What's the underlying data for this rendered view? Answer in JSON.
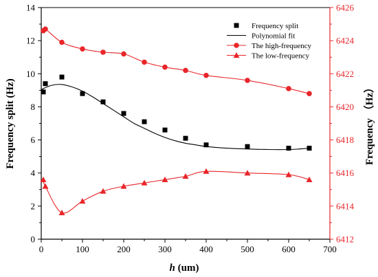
{
  "chart_data": {
    "type": "scatter",
    "xlabel_italic": "h",
    "xlabel_rest": " (um)",
    "ylabel": "Frequency split (Hz)",
    "y2label": "Frequency （Hz）",
    "xlim": [
      0,
      700
    ],
    "ylim": [
      0,
      14
    ],
    "y2lim": [
      6412,
      6426
    ],
    "x_ticks": [
      "0",
      "100",
      "200",
      "300",
      "400",
      "500",
      "600",
      "700"
    ],
    "y_ticks": [
      "0",
      "2",
      "4",
      "6",
      "8",
      "10",
      "12",
      "14"
    ],
    "y2_ticks": [
      "6412",
      "6414",
      "6416",
      "6418",
      "6420",
      "6422",
      "6424",
      "6426"
    ],
    "colors": {
      "left_axis": "#000000",
      "right_axis": "#e8262a",
      "fit": "#000000"
    },
    "series": [
      {
        "name": "Frequency split",
        "axis": "left",
        "marker": "square",
        "color": "#000000",
        "x": [
          5,
          10,
          50,
          100,
          150,
          200,
          250,
          300,
          350,
          400,
          500,
          600,
          650
        ],
        "y": [
          8.9,
          9.4,
          9.8,
          8.8,
          8.3,
          7.6,
          7.1,
          6.6,
          6.1,
          5.7,
          5.6,
          5.5,
          5.5
        ]
      },
      {
        "name": "Polynomial fit",
        "axis": "left",
        "marker": "line",
        "color": "#000000",
        "x": [
          0,
          25,
          50,
          75,
          100,
          125,
          150,
          175,
          200,
          225,
          250,
          275,
          300,
          325,
          350,
          375,
          400,
          450,
          500,
          550,
          600,
          625,
          650
        ],
        "y": [
          9.05,
          9.3,
          9.35,
          9.2,
          8.95,
          8.6,
          8.2,
          7.8,
          7.4,
          7.0,
          6.7,
          6.4,
          6.15,
          5.95,
          5.8,
          5.7,
          5.6,
          5.5,
          5.45,
          5.42,
          5.42,
          5.45,
          5.5
        ]
      },
      {
        "name": "The high-frequency",
        "axis": "right",
        "marker": "circle",
        "color": "#e8262a",
        "x": [
          5,
          10,
          50,
          100,
          150,
          200,
          250,
          300,
          350,
          400,
          500,
          600,
          650
        ],
        "y": [
          6424.6,
          6424.7,
          6423.9,
          6423.5,
          6423.3,
          6423.2,
          6422.7,
          6422.4,
          6422.2,
          6421.9,
          6421.6,
          6421.1,
          6420.8
        ]
      },
      {
        "name": "The low-frequency",
        "axis": "right",
        "marker": "triangle",
        "color": "#e8262a",
        "x": [
          5,
          10,
          50,
          100,
          150,
          200,
          250,
          300,
          350,
          400,
          500,
          600,
          650
        ],
        "y": [
          6415.6,
          6415.2,
          6413.6,
          6414.3,
          6414.9,
          6415.2,
          6415.4,
          6415.6,
          6415.8,
          6416.1,
          6416.0,
          6415.9,
          6415.6
        ]
      }
    ],
    "legend": {
      "placement": "top-right",
      "entries": [
        "Frequency split",
        "Polynomial fit",
        "The high-frequency",
        "The low-frequency"
      ]
    }
  }
}
